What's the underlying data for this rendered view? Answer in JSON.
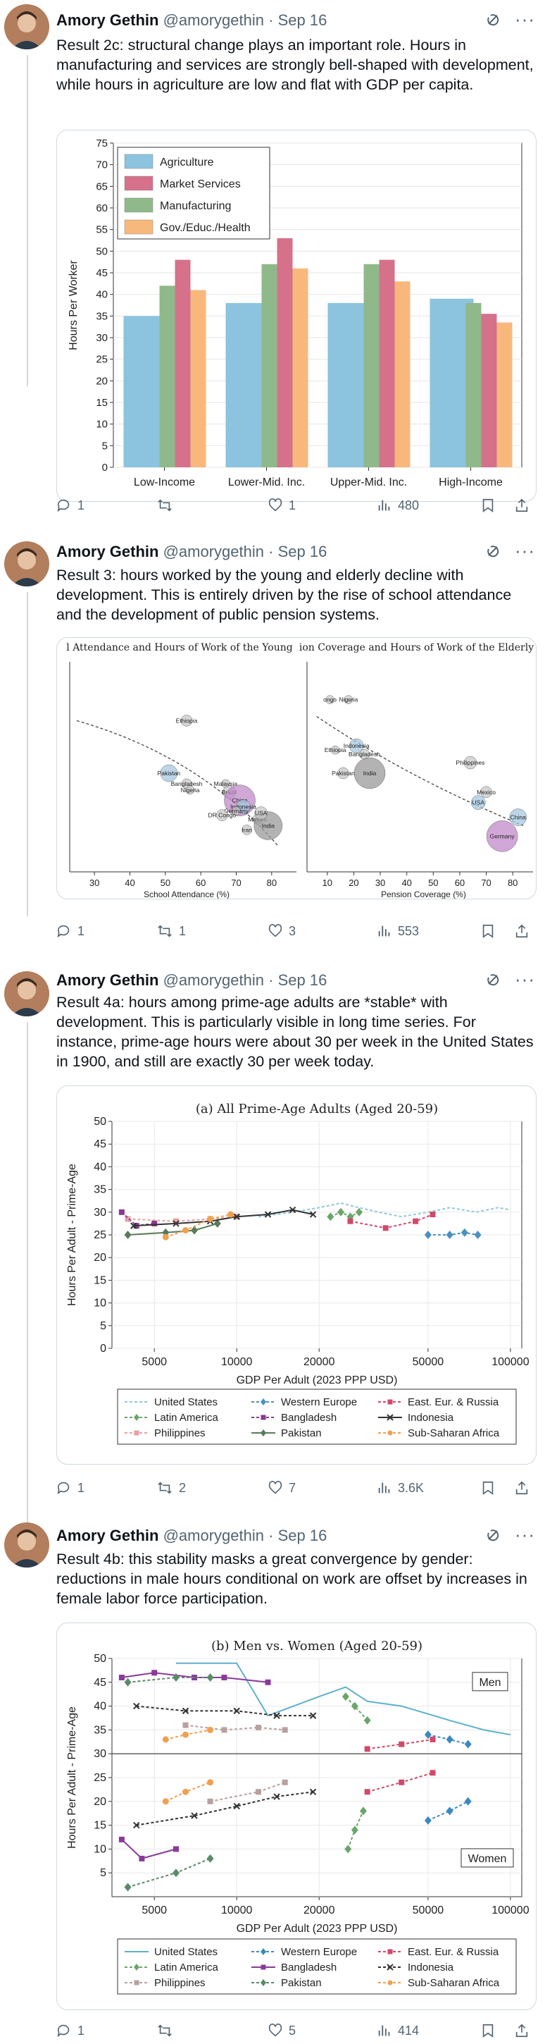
{
  "author": {
    "name": "Amory Gethin",
    "handle": "@amorygethin",
    "date": "Sep 16"
  },
  "icons": {
    "avatar": "avatar-photo",
    "grok": "grok-icon",
    "more": "more-icon",
    "reply": "reply-icon",
    "repost": "repost-icon",
    "like": "heart-icon",
    "views": "views-icon",
    "bookmark": "bookmark-icon",
    "share": "share-icon"
  },
  "posts": [
    {
      "text": "Result 2c: structural change plays an important role. Hours in manufacturing and services are strongly bell-shaped with development, while hours in agriculture are low and flat with GDP per capita.",
      "stats": {
        "replies": "1",
        "reposts": "",
        "likes": "1",
        "views": "480"
      }
    },
    {
      "text": "Result 3: hours worked by the young and elderly decline with development. This is entirely driven by the rise of school attendance and the development of public pension systems.",
      "stats": {
        "replies": "1",
        "reposts": "1",
        "likes": "3",
        "views": "553"
      }
    },
    {
      "text": "Result 4a: hours among prime-age adults are *stable* with development. This is particularly visible in long time series. For instance, prime-age hours were about 30 per week in the United States in 1900, and still are exactly 30 per week today.",
      "stats": {
        "replies": "1",
        "reposts": "2",
        "likes": "7",
        "views": "3.6K"
      }
    },
    {
      "text": "Result 4b: this stability masks a great convergence by gender: reductions in male hours conditional on work are offset by increases in female labor force participation.",
      "stats": {
        "replies": "1",
        "reposts": "",
        "likes": "5",
        "views": "414"
      }
    }
  ],
  "chart_data": [
    {
      "type": "bar",
      "ylabel": "Hours Per Worker",
      "ylim": [
        0,
        75
      ],
      "yticks": [
        "0",
        "5",
        "10",
        "15",
        "20",
        "25",
        "30",
        "35",
        "40",
        "45",
        "50",
        "55",
        "60",
        "65",
        "70",
        "75"
      ],
      "categories": [
        "Low-Income",
        "Lower-Mid. Inc.",
        "Upper-Mid. Inc.",
        "High-Income"
      ],
      "legend_position": "top-left",
      "series": [
        {
          "name": "Agriculture",
          "color": "#8cc3de",
          "values": [
            35,
            38,
            38,
            39
          ]
        },
        {
          "name": "Manufacturing",
          "color": "#8fb98a",
          "values": [
            42,
            47,
            47,
            38
          ]
        },
        {
          "name": "Market Services",
          "color": "#d5718a",
          "values": [
            48,
            53,
            48,
            35.5
          ]
        },
        {
          "name": "Gov./Educ./Health",
          "color": "#f8b87c",
          "values": [
            41,
            46,
            43,
            33.5
          ]
        }
      ],
      "grid": true
    },
    {
      "type": "scatter",
      "title": "l Attendance and Hours of Work of the Young",
      "xlabel": "School Attendance (%)",
      "xticks": [
        "30",
        "40",
        "50",
        "60",
        "70",
        "80"
      ],
      "labels": [
        "Ethiopia",
        "Pakistan",
        "Bangladesh",
        "Nigeria",
        "Malaysia",
        "Brazil",
        "China",
        "Indonesia",
        "Germany",
        "DR Congo",
        "Mexico",
        "India",
        "USA",
        "Iran"
      ],
      "points": [
        {
          "x": 56,
          "y": 0.72,
          "s": 8,
          "label": "Ethiopia"
        },
        {
          "x": 51,
          "y": 0.47,
          "s": 12,
          "label": "Pakistan"
        },
        {
          "x": 56,
          "y": 0.42,
          "s": 7,
          "label": "Bangladesh"
        },
        {
          "x": 57,
          "y": 0.39,
          "s": 6,
          "label": "Nigeria"
        },
        {
          "x": 67,
          "y": 0.42,
          "s": 6,
          "label": "Malaysia"
        },
        {
          "x": 68,
          "y": 0.38,
          "s": 9,
          "label": "Brazil"
        },
        {
          "x": 71,
          "y": 0.34,
          "s": 22,
          "label": "China"
        },
        {
          "x": 72,
          "y": 0.31,
          "s": 10,
          "label": "Indonesia"
        },
        {
          "x": 70,
          "y": 0.29,
          "s": 6,
          "label": "Germany"
        },
        {
          "x": 66,
          "y": 0.27,
          "s": 8,
          "label": "DR Congo"
        },
        {
          "x": 76,
          "y": 0.25,
          "s": 7,
          "label": "Mexico"
        },
        {
          "x": 79,
          "y": 0.22,
          "s": 20,
          "label": "India"
        },
        {
          "x": 77,
          "y": 0.28,
          "s": 9,
          "label": "USA"
        },
        {
          "x": 73,
          "y": 0.2,
          "s": 7,
          "label": "Iran"
        }
      ]
    },
    {
      "type": "scatter",
      "title": "ion Coverage and Hours of Work of the Elderly",
      "xlabel": "Pension Coverage (%)",
      "xticks": [
        "10",
        "20",
        "30",
        "40",
        "50",
        "60",
        "70",
        "80"
      ],
      "labels": [
        "ongo",
        "Nigeria",
        "Indonesia",
        "Bangladesh",
        "Ethiopia",
        "Pakistan",
        "India",
        "Philippines",
        "Mexico",
        "USA",
        "Germany",
        "China"
      ],
      "points": [
        {
          "x": 11,
          "y": 0.82,
          "s": 6,
          "label": "ongo"
        },
        {
          "x": 18,
          "y": 0.82,
          "s": 6,
          "label": "Nigeria"
        },
        {
          "x": 21,
          "y": 0.6,
          "s": 10,
          "label": "Indonesia"
        },
        {
          "x": 24,
          "y": 0.56,
          "s": 7,
          "label": "Bangladesh"
        },
        {
          "x": 13,
          "y": 0.58,
          "s": 6,
          "label": "Ethiopia"
        },
        {
          "x": 16,
          "y": 0.47,
          "s": 8,
          "label": "Pakistan"
        },
        {
          "x": 26,
          "y": 0.47,
          "s": 22,
          "label": "India"
        },
        {
          "x": 64,
          "y": 0.52,
          "s": 9,
          "label": "Philippines"
        },
        {
          "x": 70,
          "y": 0.38,
          "s": 8,
          "label": "Mexico"
        },
        {
          "x": 67,
          "y": 0.33,
          "s": 10,
          "label": "USA"
        },
        {
          "x": 76,
          "y": 0.17,
          "s": 22,
          "label": "Germany"
        },
        {
          "x": 82,
          "y": 0.26,
          "s": 12,
          "label": "China"
        }
      ]
    },
    {
      "type": "line",
      "title": "(a) All Prime-Age Adults (Aged 20-59)",
      "xlabel": "GDP Per Adult (2023 PPP USD)",
      "ylabel": "Hours Per Adult - Prime-Age",
      "xscale": "log",
      "xticks": [
        5000,
        10000,
        20000,
        50000,
        100000
      ],
      "xticklabels": [
        "5000",
        "10000",
        "20000",
        "50000",
        "100000"
      ],
      "ylim": [
        0,
        50
      ],
      "yticks": [
        "0",
        "5",
        "10",
        "15",
        "20",
        "25",
        "30",
        "35",
        "40",
        "45",
        "50"
      ],
      "legend_position": "bottom",
      "series": [
        {
          "name": "United States",
          "color": "#8fc7d8",
          "dash": "4,3",
          "marker": "none",
          "points": [
            [
              12000,
              29
            ],
            [
              16000,
              30
            ],
            [
              20000,
              31
            ],
            [
              24000,
              32
            ],
            [
              28000,
              31
            ],
            [
              33000,
              30
            ],
            [
              40000,
              29
            ],
            [
              50000,
              30
            ],
            [
              60000,
              31
            ],
            [
              75000,
              30
            ],
            [
              90000,
              31
            ],
            [
              100000,
              30.5
            ]
          ]
        },
        {
          "name": "Latin America",
          "color": "#6aa56a",
          "dash": "4,3",
          "marker": "diamond",
          "points": [
            [
              22000,
              29
            ],
            [
              24000,
              30
            ],
            [
              26000,
              29
            ],
            [
              28000,
              30
            ]
          ]
        },
        {
          "name": "Philippines",
          "color": "#e8a0a0",
          "dash": "4,3",
          "marker": "square",
          "points": [
            [
              4000,
              28.5
            ],
            [
              6000,
              28
            ],
            [
              8000,
              28.5
            ],
            [
              10000,
              29
            ]
          ]
        },
        {
          "name": "Western Europe",
          "color": "#4a90c0",
          "dash": "4,3",
          "marker": "diamond",
          "points": [
            [
              50000,
              25
            ],
            [
              60000,
              25
            ],
            [
              68000,
              25.5
            ],
            [
              76000,
              25
            ]
          ]
        },
        {
          "name": "Bangladesh",
          "color": "#8a3a8a",
          "dash": "4,3",
          "marker": "square",
          "points": [
            [
              3800,
              30
            ],
            [
              4300,
              27
            ],
            [
              5000,
              27.5
            ]
          ]
        },
        {
          "name": "Pakistan",
          "color": "#5a7a5a",
          "dash": "none",
          "marker": "diamond",
          "points": [
            [
              4000,
              25
            ],
            [
              5500,
              25.5
            ],
            [
              7000,
              26
            ],
            [
              8500,
              27.5
            ]
          ]
        },
        {
          "name": "East. Eur. & Russia",
          "color": "#d04a6a",
          "dash": "4,3",
          "marker": "square",
          "points": [
            [
              26000,
              28
            ],
            [
              35000,
              26.5
            ],
            [
              45000,
              28
            ],
            [
              52000,
              29.5
            ]
          ]
        },
        {
          "name": "Indonesia",
          "color": "#333333",
          "dash": "none",
          "marker": "x",
          "points": [
            [
              4200,
              27
            ],
            [
              6000,
              27.5
            ],
            [
              8000,
              28
            ],
            [
              10000,
              29
            ],
            [
              13000,
              29.5
            ],
            [
              16000,
              30.5
            ],
            [
              19000,
              29.5
            ]
          ]
        },
        {
          "name": "Sub-Saharan Africa",
          "color": "#f0a050",
          "dash": "4,3",
          "marker": "circle",
          "points": [
            [
              5500,
              24.5
            ],
            [
              6500,
              26
            ],
            [
              8000,
              28.5
            ],
            [
              9500,
              29.5
            ]
          ]
        }
      ]
    },
    {
      "type": "line",
      "title": "(b) Men vs. Women (Aged 20-59)",
      "xlabel": "GDP Per Adult (2023 PPP USD)",
      "ylabel": "Hours Per Adult - Prime-Age",
      "xscale": "log",
      "xticks": [
        5000,
        10000,
        20000,
        50000,
        100000
      ],
      "xticklabels": [
        "5000",
        "10000",
        "20000",
        "50000",
        "100000"
      ],
      "ylim": [
        0,
        50
      ],
      "yticks": [
        "5",
        "10",
        "15",
        "20",
        "25",
        "30",
        "35",
        "40",
        "45",
        "50"
      ],
      "annotations": [
        "Men",
        "Women"
      ],
      "legend_position": "bottom",
      "series": [
        {
          "name": "United States",
          "color": "#5fb0c8",
          "dash": "none",
          "marker": "none",
          "points": [
            [
              6000,
              49
            ],
            [
              10000,
              49
            ],
            [
              13000,
              38
            ],
            [
              20000,
              42
            ],
            [
              25000,
              44
            ],
            [
              30000,
              41
            ],
            [
              40000,
              40
            ],
            [
              60000,
              37
            ],
            [
              80000,
              35
            ],
            [
              100000,
              34
            ]
          ]
        },
        {
          "name": "Latin America",
          "color": "#6aa56a",
          "dash": "4,3",
          "marker": "diamond",
          "points": [
            [
              25000,
              42
            ],
            [
              27000,
              40
            ],
            [
              30000,
              37
            ],
            [
              25500,
              10
            ],
            [
              27000,
              14
            ],
            [
              29000,
              18
            ]
          ]
        },
        {
          "name": "Philippines",
          "color": "#b8a0a0",
          "dash": "4,3",
          "marker": "square",
          "points": [
            [
              6500,
              36
            ],
            [
              9000,
              35
            ],
            [
              12000,
              35.5
            ],
            [
              15000,
              35
            ],
            [
              8000,
              20
            ],
            [
              12000,
              22
            ],
            [
              15000,
              24
            ]
          ]
        },
        {
          "name": "Western Europe",
          "color": "#3a8ac0",
          "dash": "4,3",
          "marker": "diamond",
          "points": [
            [
              50000,
              34
            ],
            [
              60000,
              33
            ],
            [
              70000,
              32
            ],
            [
              50000,
              16
            ],
            [
              60000,
              18
            ],
            [
              70000,
              20
            ]
          ]
        },
        {
          "name": "Bangladesh",
          "color": "#8a3a9a",
          "dash": "none",
          "marker": "square",
          "points": [
            [
              3800,
              46
            ],
            [
              5000,
              47
            ],
            [
              7000,
              46
            ],
            [
              9000,
              46
            ],
            [
              13000,
              45
            ],
            [
              3800,
              12
            ],
            [
              4500,
              8
            ],
            [
              6000,
              10
            ]
          ]
        },
        {
          "name": "Pakistan",
          "color": "#5a8a6a",
          "dash": "4,3",
          "marker": "diamond",
          "points": [
            [
              4000,
              45
            ],
            [
              6000,
              46
            ],
            [
              8000,
              46
            ],
            [
              4000,
              2
            ],
            [
              6000,
              5
            ],
            [
              8000,
              8
            ]
          ]
        },
        {
          "name": "East. Eur. & Russia",
          "color": "#d04a6a",
          "dash": "4,3",
          "marker": "square",
          "points": [
            [
              30000,
              31
            ],
            [
              40000,
              32
            ],
            [
              52000,
              33
            ],
            [
              30000,
              22
            ],
            [
              40000,
              24
            ],
            [
              52000,
              26
            ]
          ]
        },
        {
          "name": "Indonesia",
          "color": "#333333",
          "dash": "4,3",
          "marker": "x",
          "points": [
            [
              4300,
              40
            ],
            [
              6500,
              39
            ],
            [
              10000,
              39
            ],
            [
              14000,
              38
            ],
            [
              19000,
              38
            ],
            [
              4300,
              15
            ],
            [
              7000,
              17
            ],
            [
              10000,
              19
            ],
            [
              14000,
              21
            ],
            [
              19000,
              22
            ]
          ]
        },
        {
          "name": "Sub-Saharan Africa",
          "color": "#f0a050",
          "dash": "4,3",
          "marker": "circle",
          "points": [
            [
              5500,
              33
            ],
            [
              6500,
              34
            ],
            [
              8000,
              35
            ],
            [
              5500,
              20
            ],
            [
              6500,
              22
            ],
            [
              8000,
              24
            ]
          ]
        }
      ]
    }
  ]
}
